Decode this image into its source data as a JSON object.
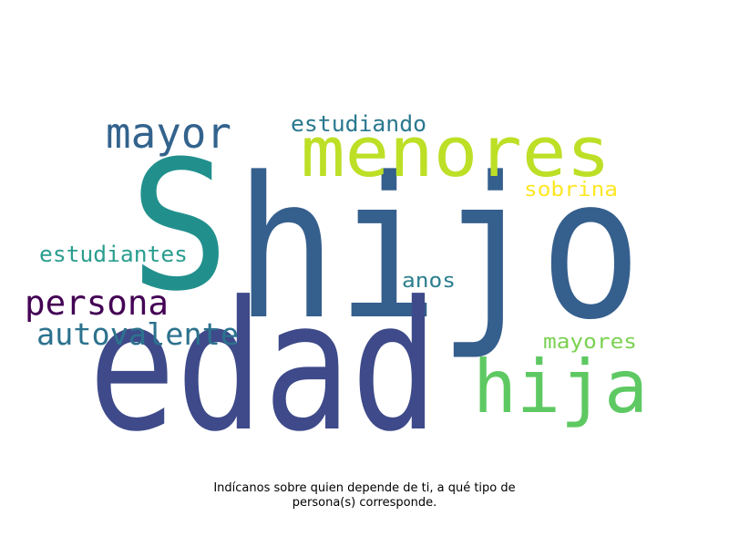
{
  "caption": {
    "line1": "Indícanos sobre quien depende de ti, a qué tipo de",
    "line2": "persona(s) corresponde."
  },
  "words": [
    {
      "text": "hijo",
      "color": "#355f8d"
    },
    {
      "text": "edad",
      "color": "#3e4a89"
    },
    {
      "text": "S",
      "color": "#21908d"
    },
    {
      "text": "menores",
      "color": "#bddf26"
    },
    {
      "text": "hija",
      "color": "#5ec962"
    },
    {
      "text": "mayor",
      "color": "#33638d"
    },
    {
      "text": "persona",
      "color": "#440154"
    },
    {
      "text": "autovalente",
      "color": "#2c728e"
    },
    {
      "text": "estudiantes",
      "color": "#2a9d8f"
    },
    {
      "text": "estudiando",
      "color": "#2a788e"
    },
    {
      "text": "sobrina",
      "color": "#fde725"
    },
    {
      "text": "anos",
      "color": "#2c7f8e"
    },
    {
      "text": "mayores",
      "color": "#7ad151"
    }
  ]
}
